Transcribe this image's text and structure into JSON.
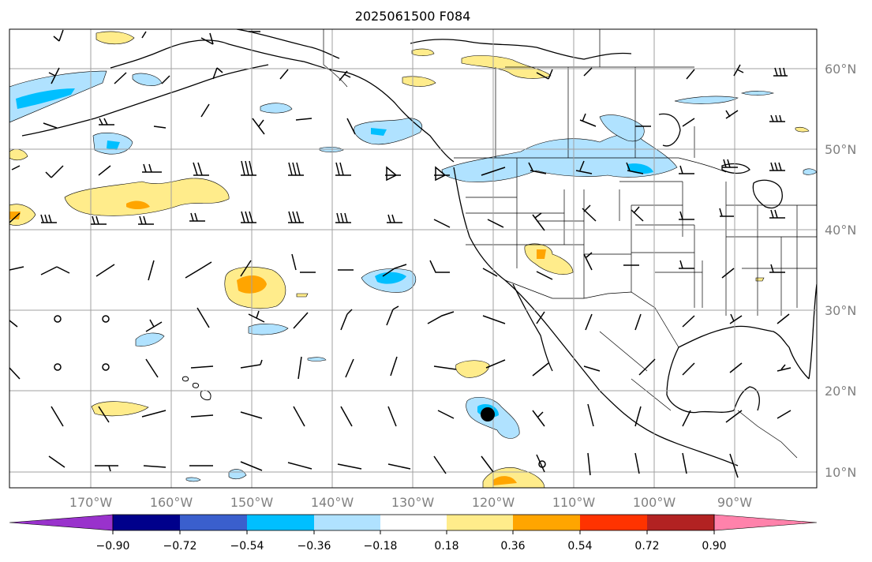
{
  "title": "2025061500 F084",
  "lat_labels": [
    "60°N",
    "50°N",
    "40°N",
    "30°N",
    "20°N",
    "10°N"
  ],
  "lon_labels": [
    "170°W",
    "160°W",
    "150°W",
    "140°W",
    "130°W",
    "120°W",
    "110°W",
    "100°W",
    "90°W"
  ],
  "colorbar": {
    "tick_labels": [
      "−0.90",
      "−0.72",
      "−0.54",
      "−0.36",
      "−0.18",
      "0.18",
      "0.36",
      "0.54",
      "0.72",
      "0.90"
    ],
    "colors": [
      "#9932CC",
      "#00008B",
      "#3A5FCD",
      "#00BFFF",
      "#B0E2FF",
      "#FFFFFF",
      "#FFEC8B",
      "#FFA500",
      "#FF3300",
      "#B22222",
      "#FF82AB"
    ],
    "extend": "both"
  },
  "map": {
    "grid_lines": true,
    "projection": "plate-carree",
    "barbs": true,
    "storm_marker": "black-dot"
  }
}
